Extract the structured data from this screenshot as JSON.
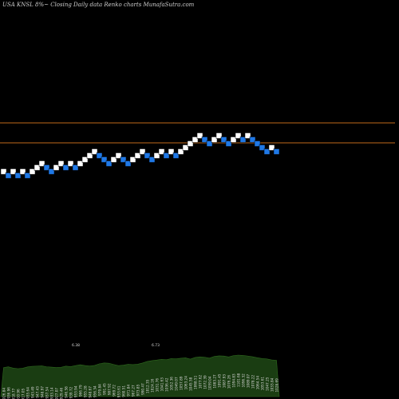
{
  "header": {
    "text": "USA KNSL  8%~  Closing Daily data  Renko  charts MunafaSutra.com"
  },
  "colors": {
    "background": "#000000",
    "brick_up": "#ffffff",
    "brick_down": "#1f78e6",
    "line": "#c06a1a",
    "volume_fill": "#1a3d12",
    "volume_stroke": "#2e6a1e",
    "label": "#d8d8d8"
  },
  "chart_data": {
    "type": "renko",
    "price_range": [
      0,
      100
    ],
    "horizontal_lines": [
      69.2,
      64.2
    ],
    "bricks": [
      {
        "close": 57.7,
        "dir": "up"
      },
      {
        "close": 56.7,
        "dir": "down"
      },
      {
        "close": 57.7,
        "dir": "up"
      },
      {
        "close": 56.7,
        "dir": "down"
      },
      {
        "close": 57.7,
        "dir": "up"
      },
      {
        "close": 56.7,
        "dir": "down"
      },
      {
        "close": 57.7,
        "dir": "up"
      },
      {
        "close": 58.7,
        "dir": "up"
      },
      {
        "close": 59.7,
        "dir": "up"
      },
      {
        "close": 58.7,
        "dir": "down"
      },
      {
        "close": 57.7,
        "dir": "down"
      },
      {
        "close": 58.7,
        "dir": "up"
      },
      {
        "close": 59.7,
        "dir": "up"
      },
      {
        "close": 58.7,
        "dir": "down"
      },
      {
        "close": 59.7,
        "dir": "up"
      },
      {
        "close": 58.7,
        "dir": "down"
      },
      {
        "close": 59.7,
        "dir": "up"
      },
      {
        "close": 60.7,
        "dir": "up"
      },
      {
        "close": 61.7,
        "dir": "up"
      },
      {
        "close": 62.7,
        "dir": "up"
      },
      {
        "close": 61.7,
        "dir": "down"
      },
      {
        "close": 60.7,
        "dir": "down"
      },
      {
        "close": 59.7,
        "dir": "down"
      },
      {
        "close": 60.7,
        "dir": "up"
      },
      {
        "close": 61.7,
        "dir": "up"
      },
      {
        "close": 60.7,
        "dir": "down"
      },
      {
        "close": 59.7,
        "dir": "down"
      },
      {
        "close": 60.7,
        "dir": "up"
      },
      {
        "close": 61.7,
        "dir": "up"
      },
      {
        "close": 62.7,
        "dir": "up"
      },
      {
        "close": 61.7,
        "dir": "down"
      },
      {
        "close": 60.7,
        "dir": "down"
      },
      {
        "close": 61.7,
        "dir": "up"
      },
      {
        "close": 62.7,
        "dir": "up"
      },
      {
        "close": 61.7,
        "dir": "down"
      },
      {
        "close": 62.7,
        "dir": "up"
      },
      {
        "close": 61.7,
        "dir": "down"
      },
      {
        "close": 62.7,
        "dir": "up"
      },
      {
        "close": 63.7,
        "dir": "up"
      },
      {
        "close": 64.7,
        "dir": "up"
      },
      {
        "close": 65.7,
        "dir": "up"
      },
      {
        "close": 66.7,
        "dir": "up"
      },
      {
        "close": 65.7,
        "dir": "down"
      },
      {
        "close": 64.7,
        "dir": "down"
      },
      {
        "close": 65.7,
        "dir": "up"
      },
      {
        "close": 66.7,
        "dir": "up"
      },
      {
        "close": 65.7,
        "dir": "down"
      },
      {
        "close": 64.7,
        "dir": "down"
      },
      {
        "close": 65.7,
        "dir": "up"
      },
      {
        "close": 66.7,
        "dir": "up"
      },
      {
        "close": 65.7,
        "dir": "down"
      },
      {
        "close": 66.7,
        "dir": "up"
      },
      {
        "close": 65.7,
        "dir": "down"
      },
      {
        "close": 64.7,
        "dir": "down"
      },
      {
        "close": 63.7,
        "dir": "down"
      },
      {
        "close": 62.7,
        "dir": "down"
      },
      {
        "close": 63.7,
        "dir": "up"
      },
      {
        "close": 62.7,
        "dir": "down"
      }
    ],
    "volume_labels": [
      "926.84",
      "936.96",
      "918.77",
      "910.96",
      "917.05",
      "935.64",
      "943.49",
      "947.43",
      "948.97",
      "937.54",
      "933.14",
      "927.07",
      "929.46",
      "946.58",
      "939.72",
      "953.94",
      "966.79",
      "955.28",
      "948.67",
      "956.34",
      "979.84",
      "991.45",
      "987.92",
      "969.72",
      "953.61",
      "960.51",
      "971.84",
      "967.27",
      "973.85",
      "990.47",
      "1012.35",
      "1024.16",
      "1031.76",
      "1041.63",
      "1036.42",
      "1052.36",
      "1049.07",
      "1057.89",
      "1063.24",
      "1045.58",
      "1068.51",
      "1077.62",
      "1072.39",
      "1059.04",
      "1083.27",
      "1091.45",
      "1087.93",
      "1076.26",
      "1094.83",
      "1101.68",
      "1096.32",
      "1089.07",
      "1078.22",
      "1064.54",
      "1053.61",
      "1047.25",
      "1033.84",
      "1028.69"
    ],
    "volume_peak_labels": [
      "6.38",
      "6.73"
    ]
  }
}
